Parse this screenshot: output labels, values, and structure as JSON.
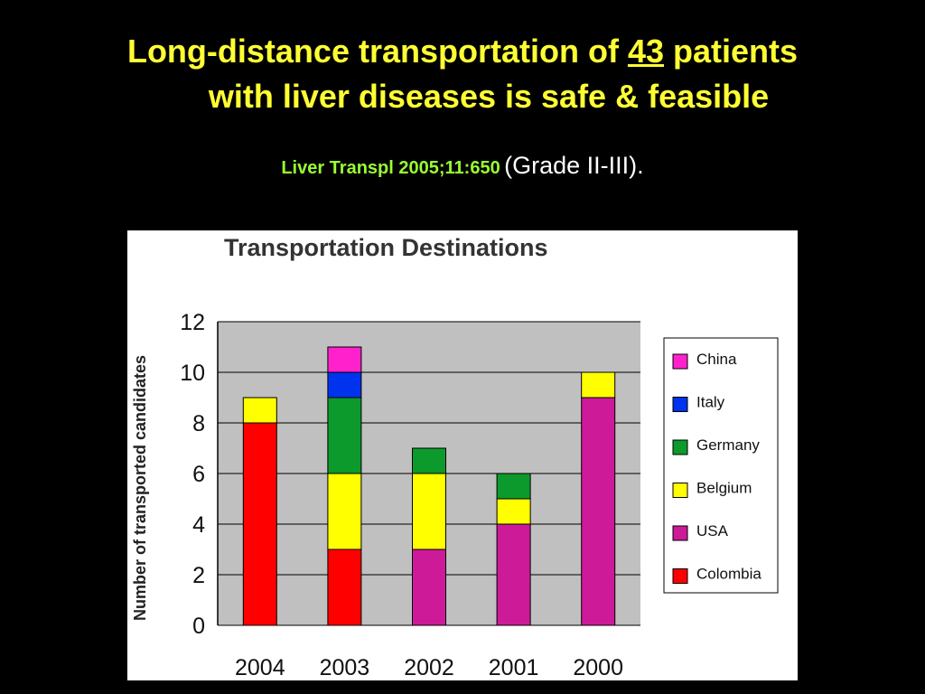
{
  "slide": {
    "title_part1": "Long-distance transportation of ",
    "title_number": "43",
    "title_part2": " patients",
    "title_line2": "with liver diseases is safe & feasible",
    "citation": "Liver Transpl 2005;11:650",
    "grade": "(Grade II-III)."
  },
  "chart_data": {
    "type": "bar",
    "stacked": true,
    "title": "Transportation Destinations",
    "xlabel": "",
    "ylabel": "Number of transported candidates",
    "ylim": [
      0,
      12
    ],
    "yticks": [
      0,
      2,
      4,
      6,
      8,
      10,
      12
    ],
    "grid": true,
    "legend_position": "right",
    "plot_background": "#c0c0c0",
    "categories": [
      "2004",
      "2003",
      "2002",
      "2001",
      "2000"
    ],
    "series": [
      {
        "name": "Colombia",
        "color": "#ff0000",
        "values": [
          8,
          3,
          0,
          0,
          0
        ]
      },
      {
        "name": "USA",
        "color": "#cc1a99",
        "values": [
          0,
          0,
          3,
          4,
          9
        ]
      },
      {
        "name": "Belgium",
        "color": "#ffff00",
        "values": [
          1,
          3,
          3,
          1,
          1
        ]
      },
      {
        "name": "Germany",
        "color": "#0c9a2c",
        "values": [
          0,
          3,
          1,
          1,
          0
        ]
      },
      {
        "name": "Italy",
        "color": "#0033ee",
        "values": [
          0,
          1,
          0,
          0,
          0
        ]
      },
      {
        "name": "China",
        "color": "#ff22cc",
        "values": [
          0,
          1,
          0,
          0,
          0
        ]
      }
    ],
    "legend_order": [
      "China",
      "Italy",
      "Germany",
      "Belgium",
      "USA",
      "Colombia"
    ]
  }
}
